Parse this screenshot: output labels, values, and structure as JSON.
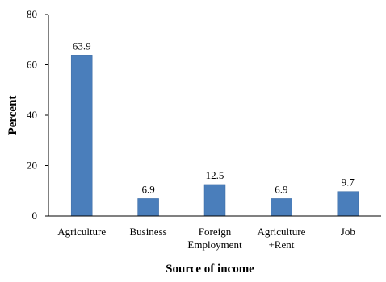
{
  "chart_data": {
    "type": "bar",
    "categories": [
      [
        "Agriculture"
      ],
      [
        "Business"
      ],
      [
        "Foreign",
        "Employment"
      ],
      [
        "Agriculture",
        "+Rent"
      ],
      [
        "Job"
      ]
    ],
    "values": [
      63.9,
      6.9,
      12.5,
      6.9,
      9.7
    ],
    "data_labels": [
      "63.9",
      "6.9",
      "12.5",
      "6.9",
      "9.7"
    ],
    "ylim": [
      0,
      80
    ],
    "yticks": [
      0,
      20,
      40,
      60,
      80
    ],
    "xlabel": "Source of income",
    "ylabel": "Percent",
    "title": "",
    "grid": false,
    "bar_color": "#4a7ebb"
  }
}
